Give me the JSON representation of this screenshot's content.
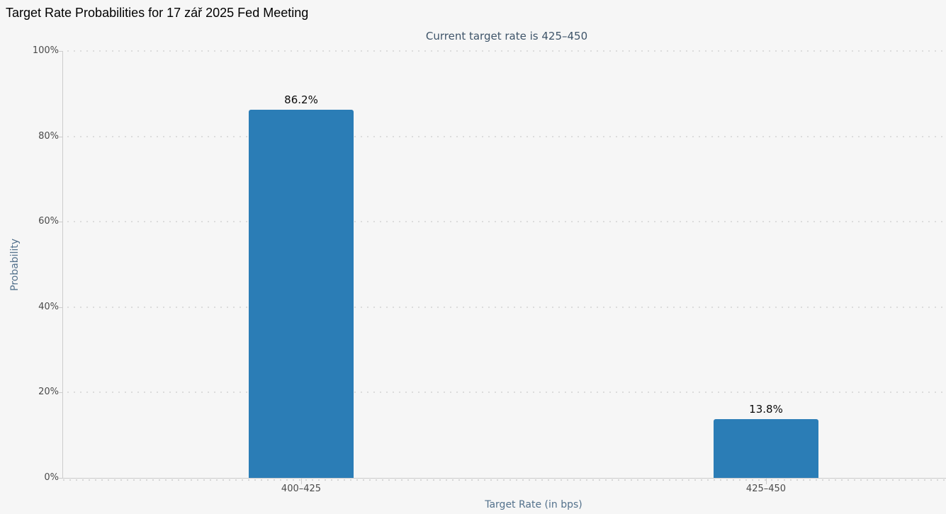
{
  "chart_data": {
    "type": "bar",
    "title": "Target Rate Probabilities for 17 zář 2025 Fed Meeting",
    "subtitle": "Current target rate is 425–450",
    "categories": [
      "400–425",
      "425–450"
    ],
    "values": [
      86.2,
      13.8
    ],
    "value_labels": [
      "86.2%",
      "13.8%"
    ],
    "xlabel": "Target Rate (in bps)",
    "ylabel": "Probability",
    "ylim": [
      0,
      100
    ],
    "ytick_labels": [
      "0%",
      "20%",
      "40%",
      "60%",
      "80%",
      "100%"
    ],
    "grid": "dotted horizontal gridlines at each 20%",
    "legend": "none",
    "colors": {
      "bar": "#2b7db6",
      "title": "#000000",
      "subtitle": "#3e5469",
      "tick_label": "#4a4a4a",
      "axis_title": "#53718c",
      "axis_line": "#cccccc",
      "grid_dot": "#dcdcdc",
      "background": "#f6f6f6"
    }
  }
}
